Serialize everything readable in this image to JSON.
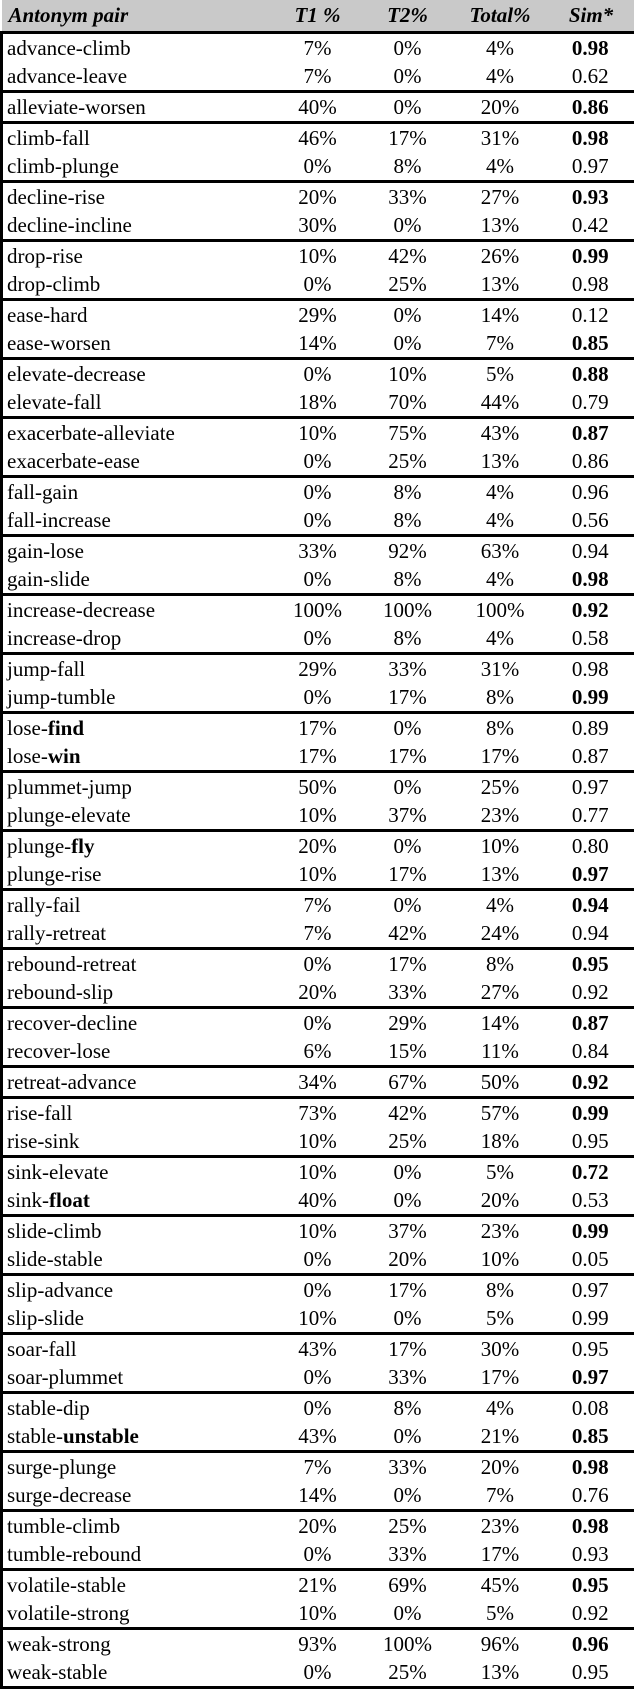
{
  "header": {
    "bg_color": "#c9c9c9",
    "columns": [
      {
        "label": "Antonym pair"
      },
      {
        "label": "T1 %"
      },
      {
        "label": "T2%"
      },
      {
        "label": "Total%"
      },
      {
        "label": "Sim*"
      }
    ]
  },
  "table": {
    "groups": [
      {
        "rows": [
          {
            "p1": "advance-climb",
            "p2": "",
            "t1": "7%",
            "t2": "0%",
            "total": "4%",
            "sim": "0.98",
            "simBold": true
          },
          {
            "p1": "advance-leave",
            "p2": "",
            "t1": "7%",
            "t2": "0%",
            "total": "4%",
            "sim": "0.62",
            "simBold": false
          }
        ]
      },
      {
        "rows": [
          {
            "p1": "alleviate-worsen",
            "p2": "",
            "t1": "40%",
            "t2": "0%",
            "total": "20%",
            "sim": "0.86",
            "simBold": true
          }
        ]
      },
      {
        "rows": [
          {
            "p1": "climb-fall",
            "p2": "",
            "t1": "46%",
            "t2": "17%",
            "total": "31%",
            "sim": "0.98",
            "simBold": true
          },
          {
            "p1": "climb-plunge",
            "p2": "",
            "t1": "0%",
            "t2": "8%",
            "total": "4%",
            "sim": "0.97",
            "simBold": false
          }
        ]
      },
      {
        "rows": [
          {
            "p1": "decline-rise",
            "p2": "",
            "t1": "20%",
            "t2": "33%",
            "total": "27%",
            "sim": "0.93",
            "simBold": true
          },
          {
            "p1": "decline-incline",
            "p2": "",
            "t1": "30%",
            "t2": "0%",
            "total": "13%",
            "sim": "0.42",
            "simBold": false
          }
        ]
      },
      {
        "rows": [
          {
            "p1": "drop-rise",
            "p2": "",
            "t1": "10%",
            "t2": "42%",
            "total": "26%",
            "sim": "0.99",
            "simBold": true
          },
          {
            "p1": "drop-climb",
            "p2": "",
            "t1": "0%",
            "t2": "25%",
            "total": "13%",
            "sim": "0.98",
            "simBold": false
          }
        ]
      },
      {
        "rows": [
          {
            "p1": "ease-hard",
            "p2": "",
            "t1": "29%",
            "t2": "0%",
            "total": "14%",
            "sim": "0.12",
            "simBold": false
          },
          {
            "p1": "ease-worsen",
            "p2": "",
            "t1": "14%",
            "t2": "0%",
            "total": "7%",
            "sim": "0.85",
            "simBold": true
          }
        ]
      },
      {
        "rows": [
          {
            "p1": "elevate-decrease",
            "p2": "",
            "t1": "0%",
            "t2": "10%",
            "total": "5%",
            "sim": "0.88",
            "simBold": true
          },
          {
            "p1": "elevate-fall",
            "p2": "",
            "t1": "18%",
            "t2": "70%",
            "total": "44%",
            "sim": "0.79",
            "simBold": false
          }
        ]
      },
      {
        "rows": [
          {
            "p1": "exacerbate-alleviate",
            "p2": "",
            "t1": "10%",
            "t2": "75%",
            "total": "43%",
            "sim": "0.87",
            "simBold": true
          },
          {
            "p1": "exacerbate-ease",
            "p2": "",
            "t1": "0%",
            "t2": "25%",
            "total": "13%",
            "sim": "0.86",
            "simBold": false
          }
        ]
      },
      {
        "rows": [
          {
            "p1": "fall-gain",
            "p2": "",
            "t1": "0%",
            "t2": "8%",
            "total": "4%",
            "sim": "0.96",
            "simBold": false
          },
          {
            "p1": "fall-increase",
            "p2": "",
            "t1": "0%",
            "t2": "8%",
            "total": "4%",
            "sim": "0.56",
            "simBold": false
          }
        ]
      },
      {
        "rows": [
          {
            "p1": "gain-lose",
            "p2": "",
            "t1": "33%",
            "t2": "92%",
            "total": "63%",
            "sim": "0.94",
            "simBold": false
          },
          {
            "p1": "gain-slide",
            "p2": "",
            "t1": "0%",
            "t2": "8%",
            "total": "4%",
            "sim": "0.98",
            "simBold": true
          }
        ]
      },
      {
        "rows": [
          {
            "p1": "increase-decrease",
            "p2": "",
            "t1": "100%",
            "t2": "100%",
            "total": "100%",
            "sim": "0.92",
            "simBold": true
          },
          {
            "p1": "increase-drop",
            "p2": "",
            "t1": "0%",
            "t2": "8%",
            "total": "4%",
            "sim": "0.58",
            "simBold": false
          }
        ]
      },
      {
        "rows": [
          {
            "p1": "jump-fall",
            "p2": "",
            "t1": "29%",
            "t2": "33%",
            "total": "31%",
            "sim": "0.98",
            "simBold": false
          },
          {
            "p1": "jump-tumble",
            "p2": "",
            "t1": "0%",
            "t2": "17%",
            "total": "8%",
            "sim": "0.99",
            "simBold": true
          }
        ]
      },
      {
        "rows": [
          {
            "p1": "lose-",
            "p2": "find",
            "t1": "17%",
            "t2": "0%",
            "total": "8%",
            "sim": "0.89",
            "simBold": false
          },
          {
            "p1": "lose-",
            "p2": "win",
            "t1": "17%",
            "t2": "17%",
            "total": "17%",
            "sim": "0.87",
            "simBold": false
          }
        ]
      },
      {
        "rows": [
          {
            "p1": "plummet-jump",
            "p2": "",
            "t1": "50%",
            "t2": "0%",
            "total": "25%",
            "sim": "0.97",
            "simBold": false
          },
          {
            "p1": "plunge-elevate",
            "p2": "",
            "t1": "10%",
            "t2": "37%",
            "total": "23%",
            "sim": "0.77",
            "simBold": false
          }
        ]
      },
      {
        "rows": [
          {
            "p1": "plunge-",
            "p2": "fly",
            "t1": "20%",
            "t2": "0%",
            "total": "10%",
            "sim": "0.80",
            "simBold": false
          },
          {
            "p1": "plunge-rise",
            "p2": "",
            "t1": "10%",
            "t2": "17%",
            "total": "13%",
            "sim": "0.97",
            "simBold": true
          }
        ]
      },
      {
        "rows": [
          {
            "p1": "rally-fail",
            "p2": "",
            "t1": "7%",
            "t2": "0%",
            "total": "4%",
            "sim": "0.94",
            "simBold": true
          },
          {
            "p1": "rally-retreat",
            "p2": "",
            "t1": "7%",
            "t2": "42%",
            "total": "24%",
            "sim": "0.94",
            "simBold": false
          }
        ]
      },
      {
        "rows": [
          {
            "p1": "rebound-retreat",
            "p2": "",
            "t1": "0%",
            "t2": "17%",
            "total": "8%",
            "sim": "0.95",
            "simBold": true
          },
          {
            "p1": "rebound-slip",
            "p2": "",
            "t1": "20%",
            "t2": "33%",
            "total": "27%",
            "sim": "0.92",
            "simBold": false
          }
        ]
      },
      {
        "rows": [
          {
            "p1": "recover-decline",
            "p2": "",
            "t1": "0%",
            "t2": "29%",
            "total": "14%",
            "sim": "0.87",
            "simBold": true
          },
          {
            "p1": "recover-lose",
            "p2": "",
            "t1": "6%",
            "t2": "15%",
            "total": "11%",
            "sim": "0.84",
            "simBold": false
          }
        ]
      },
      {
        "rows": [
          {
            "p1": "retreat-advance",
            "p2": "",
            "t1": "34%",
            "t2": "67%",
            "total": "50%",
            "sim": "0.92",
            "simBold": true
          }
        ]
      },
      {
        "rows": [
          {
            "p1": "rise-fall",
            "p2": "",
            "t1": "73%",
            "t2": "42%",
            "total": "57%",
            "sim": "0.99",
            "simBold": true
          },
          {
            "p1": "rise-sink",
            "p2": "",
            "t1": "10%",
            "t2": "25%",
            "total": "18%",
            "sim": "0.95",
            "simBold": false
          }
        ]
      },
      {
        "rows": [
          {
            "p1": "sink-elevate",
            "p2": "",
            "t1": "10%",
            "t2": "0%",
            "total": "5%",
            "sim": "0.72",
            "simBold": true
          },
          {
            "p1": "sink-",
            "p2": "float",
            "t1": "40%",
            "t2": "0%",
            "total": "20%",
            "sim": "0.53",
            "simBold": false
          }
        ]
      },
      {
        "rows": [
          {
            "p1": "slide-climb",
            "p2": "",
            "t1": "10%",
            "t2": "37%",
            "total": "23%",
            "sim": "0.99",
            "simBold": true
          },
          {
            "p1": "slide-stable",
            "p2": "",
            "t1": "0%",
            "t2": "20%",
            "total": "10%",
            "sim": "0.05",
            "simBold": false
          }
        ]
      },
      {
        "rows": [
          {
            "p1": "slip-advance",
            "p2": "",
            "t1": "0%",
            "t2": "17%",
            "total": "8%",
            "sim": "0.97",
            "simBold": false
          },
          {
            "p1": "slip-slide",
            "p2": "",
            "t1": "10%",
            "t2": "0%",
            "total": "5%",
            "sim": "0.99",
            "simBold": false
          }
        ]
      },
      {
        "rows": [
          {
            "p1": "soar-fall",
            "p2": "",
            "t1": "43%",
            "t2": "17%",
            "total": "30%",
            "sim": "0.95",
            "simBold": false
          },
          {
            "p1": "soar-plummet",
            "p2": "",
            "t1": "0%",
            "t2": "33%",
            "total": "17%",
            "sim": "0.97",
            "simBold": true
          }
        ]
      },
      {
        "rows": [
          {
            "p1": "stable-dip",
            "p2": "",
            "t1": "0%",
            "t2": "8%",
            "total": "4%",
            "sim": "0.08",
            "simBold": false
          },
          {
            "p1": "stable-",
            "p2": "unstable",
            "t1": "43%",
            "t2": "0%",
            "total": "21%",
            "sim": "0.85",
            "simBold": true
          }
        ]
      },
      {
        "rows": [
          {
            "p1": "surge-plunge",
            "p2": "",
            "t1": "7%",
            "t2": "33%",
            "total": "20%",
            "sim": "0.98",
            "simBold": true
          },
          {
            "p1": "surge-decrease",
            "p2": "",
            "t1": "14%",
            "t2": "0%",
            "total": "7%",
            "sim": "0.76",
            "simBold": false
          }
        ]
      },
      {
        "rows": [
          {
            "p1": "tumble-climb",
            "p2": "",
            "t1": "20%",
            "t2": "25%",
            "total": "23%",
            "sim": "0.98",
            "simBold": true
          },
          {
            "p1": "tumble-rebound",
            "p2": "",
            "t1": "0%",
            "t2": "33%",
            "total": "17%",
            "sim": "0.93",
            "simBold": false
          }
        ]
      },
      {
        "rows": [
          {
            "p1": "volatile-stable",
            "p2": "",
            "t1": "21%",
            "t2": "69%",
            "total": "45%",
            "sim": "0.95",
            "simBold": true
          },
          {
            "p1": "volatile-strong",
            "p2": "",
            "t1": "10%",
            "t2": "0%",
            "total": "5%",
            "sim": "0.92",
            "simBold": false
          }
        ]
      },
      {
        "rows": [
          {
            "p1": "weak-strong",
            "p2": "",
            "t1": "93%",
            "t2": "100%",
            "total": "96%",
            "sim": "0.96",
            "simBold": true
          },
          {
            "p1": "weak-stable",
            "p2": "",
            "t1": "0%",
            "t2": "25%",
            "total": "13%",
            "sim": "0.95",
            "simBold": false
          }
        ]
      }
    ]
  }
}
